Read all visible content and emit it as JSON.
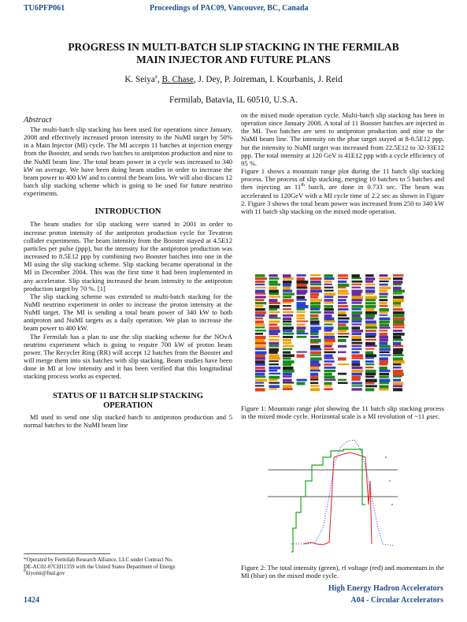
{
  "header": {
    "paper_id": "TU6PFP061",
    "proceedings": "Proceedings of PAC09, Vancouver, BC, Canada"
  },
  "title_line1": "PROGRESS IN MULTI-BATCH SLIP STACKING IN THE FERMILAB",
  "title_line2": "MAIN INJECTOR AND FUTURE PLANS",
  "authors": {
    "first": "K. Seiya",
    "first_mark": "#",
    "second": "B. Chase",
    "rest": ", J. Dey, P. Joireman, I. Kourbanis, J. Reid"
  },
  "affiliation": "Fermilab, Batavia, IL 60510, U.S.A.",
  "abstract": {
    "heading": "Abstract",
    "text": "The multi-batch slip stacking has been used for operations since January, 2008 and effectively increased proton intensity to the NuMI target by 50% in a Main Injector (MI) cycle. The MI accepts 11 batches at injection energy from the Booster, and sends two batches to antiproton production and nine to the NuMI beam line. The total beam power in a cycle was increased to 340 kW on average. We have been doing beam studies in order to increase the beam power to 400 kW and to control the beam loss. We will also discuss 12 batch slip stacking scheme which is going to be used for future neutrino experiments."
  },
  "intro": {
    "heading": "INTRODUCTION",
    "p1": "The beam studies for slip stacking were started in 2001 in order to increase proton intensity of the antiproton production cycle for Tevatron collider experiments. The beam intensity from the Booster stayed at 4.5E12 particles per pulse (ppp), but the intensity for the antiproton production was increased to 8.5E12 ppp by combining two Booster batches into one in the MI using the slip stacking scheme. Slip stacking became operational in the MI in December 2004. This was the first time it had been implemented in any accelerator. Slip stacking increased the beam intensity to the antiproton production target by 70 %. [1]",
    "p2": "The slip stacking scheme was extended to multi-batch stacking for the NuMI neutrino experiment in order to increase the proton intensity at the NuMI target. The MI is sending a total beam power of 340 kW to both antiproton and NuMI targets as a daily operation. We plan to increase the beam power to 400 kW.",
    "p3": "The Fermilab has a plan to use the slip stacking scheme for the NOvA neutrino experiment which is going to require 700 kW of proton beam power. The Recycler Ring (RR) will accept 12 batches from the Booster and will merge them into six batches with slip stacking. Beam studies have been done in MI at low intensity and it has been verified that this longitudinal stacking process works as expected."
  },
  "status": {
    "heading_line1": "STATUS OF 11 BATCH SLIP STACKING",
    "heading_line2": "OPERATION",
    "p1": "MI used to send one slip stacked batch to antiproton production and 5 normal batches to the NuMI beam line",
    "p1_cont": "on the mixed mode operation cycle. Multi-batch slip stacking has been in operation since January 2008. A total of 11 Booster batches are injected in the MI. Two batches are sent to antiproton production and nine to the NuMI beam line. The intensity on the pbar target stayed at 8-8.5E12 ppp, but the intensity to NuMI target was increased from 22.5E12 to 32-33E12 ppp. The total intensity at 120 GeV is 41E12 ppp with a cycle efficiency of 95 %.",
    "p2_a": "Figure 1 shows a mountain range plot during the 11 batch slip stacking process. The process of slip stacking, merging 10 batches to 5 batches and then injecting an 11",
    "p2_sup": "th",
    "p2_b": " batch, are done in 0.733 sec. The beam was accelerated to 120GeV with a MI cycle time of 2.2 sec as shown in Figure 2. Figure 3 shows the total beam power was increased from 250 to 340 kW with 11 batch slip stacking on the mixed mode operation."
  },
  "fig1_caption": "Figure 1: Mountain range plot showing the 11 batch slip stacking process in the mixed mode cycle. Horizontal scale is a MI revolution of ~11 μsec.",
  "fig2_caption": "Figure 2: The total intensity (green), rf voltage (red) and momentum in the MI (blue) on the mixed mode cycle.",
  "footnotes": {
    "line1": "*Operated by Fermilab Research Alliance, LLC under Contract No.",
    "line2": "DE-AC02-07CH11359 with the United States Department of Energy.",
    "mark": "#",
    "email": "kiyomi@fnal.gov"
  },
  "footer": {
    "page": "1424",
    "category": "High Energy Hadron Accelerators",
    "section": "A04 - Circular Accelerators"
  },
  "colors": {
    "header_blue": "#1d4f91",
    "fig2_intensity": "#1aa51a",
    "fig2_rf_voltage": "#e02020",
    "fig2_momentum": "#1e2fd8"
  }
}
